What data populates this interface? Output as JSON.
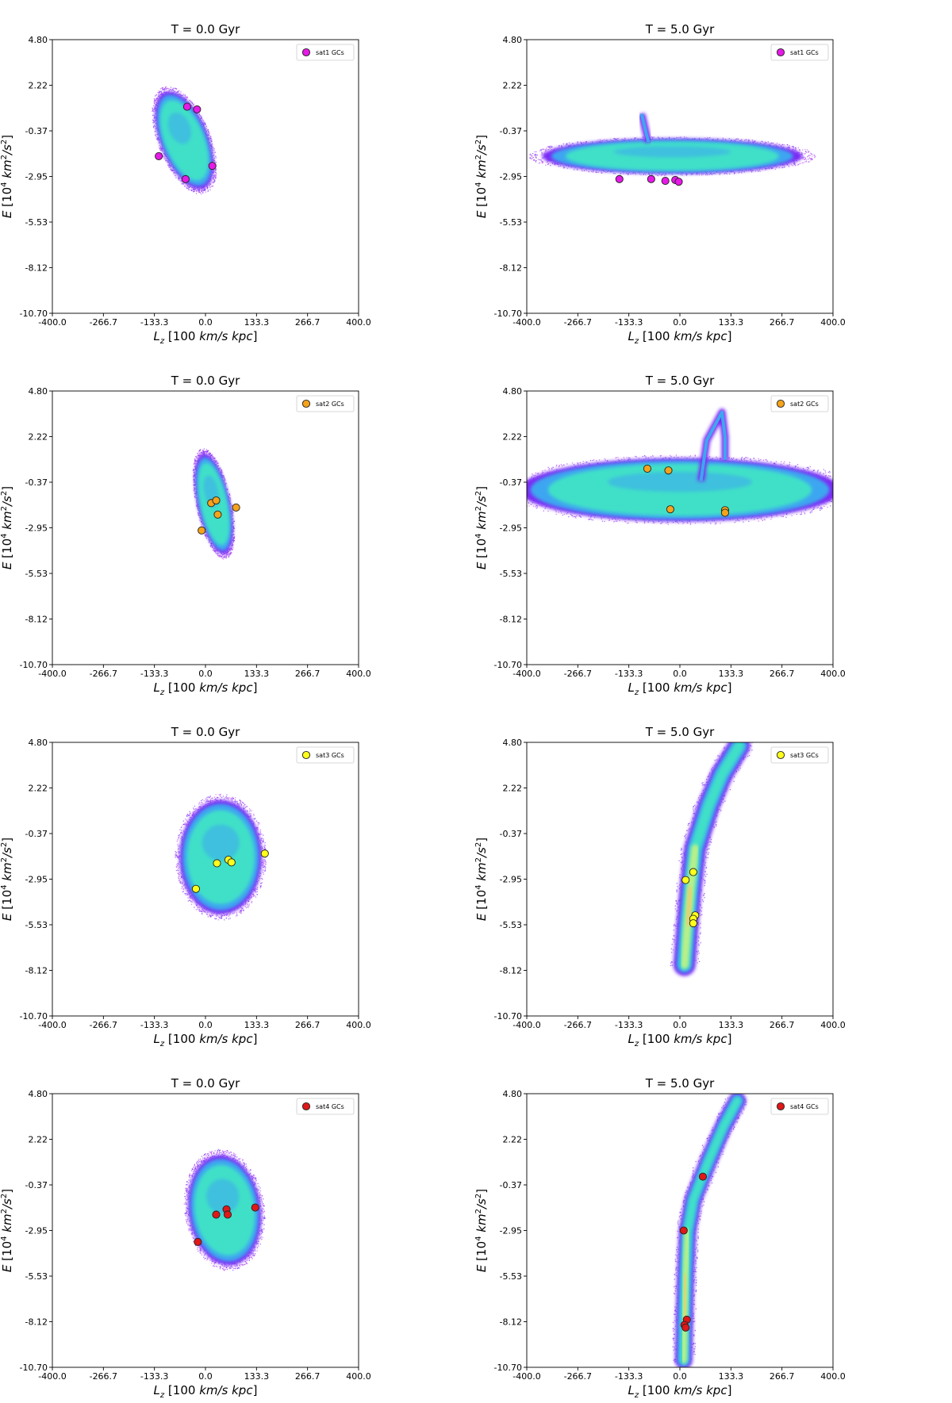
{
  "colors": {
    "sat1": "#e619e6",
    "sat2": "#f5a31a",
    "sat3": "#ffff1a",
    "sat4": "#e01818",
    "cloud_outer": "#7a2cf5",
    "cloud_mid": "#3ea6f0",
    "cloud_inner": "#3fe0c8",
    "cloud_core": "#b8f08a",
    "cloud_peak": "#f5c76b"
  },
  "chart_data": [
    {
      "type": "scatter",
      "panel": "sat1-t0",
      "title": "T = 0.0 Gyr",
      "xlabel": "L_z [100 km/s kpc]",
      "ylabel": "E [10^4 km^2/s^2]",
      "xlim": [
        -400,
        400
      ],
      "ylim": [
        -10.7,
        4.8
      ],
      "xticks": [
        "-400.0",
        "-266.7",
        "-133.3",
        "0.0",
        "133.3",
        "266.7",
        "400.0"
      ],
      "yticks": [
        "4.80",
        "2.22",
        "-0.37",
        "-2.95",
        "-5.53",
        "-8.12",
        "-10.70"
      ],
      "legend": "sat1 GCs",
      "legend_position": "top-right",
      "color_key": "sat1",
      "points": [
        [
          -48,
          1.0
        ],
        [
          -22,
          0.85
        ],
        [
          -122,
          -1.8
        ],
        [
          18,
          -2.35
        ],
        [
          -52,
          -3.1
        ]
      ],
      "density": [
        {
          "cx": -55,
          "cy": -0.9,
          "rx": 62,
          "ry": 2.95,
          "rot": 22
        }
      ]
    },
    {
      "type": "scatter",
      "panel": "sat1-t5",
      "title": "T = 5.0 Gyr",
      "xlabel": "L_z [100 km/s kpc]",
      "ylabel": "E [10^4 km^2/s^2]",
      "xlim": [
        -400,
        400
      ],
      "ylim": [
        -10.7,
        4.8
      ],
      "xticks": [
        "-400.0",
        "-266.7",
        "-133.3",
        "0.0",
        "133.3",
        "266.7",
        "400.0"
      ],
      "yticks": [
        "4.80",
        "2.22",
        "-0.37",
        "-2.95",
        "-5.53",
        "-8.12",
        "-10.70"
      ],
      "legend": "sat1 GCs",
      "legend_position": "top-right",
      "color_key": "sat1",
      "points": [
        [
          -158,
          -3.1
        ],
        [
          -75,
          -3.1
        ],
        [
          -38,
          -3.2
        ],
        [
          -12,
          -3.15
        ],
        [
          -3,
          -3.25
        ]
      ],
      "density": [
        {
          "cx": -20,
          "cy": -1.8,
          "rx": 340,
          "ry": 1.0,
          "rot": 0
        }
      ],
      "spur": [
        [
          -100,
          0.6
        ],
        [
          -88,
          -0.5
        ],
        [
          -82,
          -1.0
        ]
      ]
    },
    {
      "type": "scatter",
      "panel": "sat2-t0",
      "title": "T = 0.0 Gyr",
      "xlabel": "L_z [100 km/s kpc]",
      "ylabel": "E [10^4 km^2/s^2]",
      "xlim": [
        -400,
        400
      ],
      "ylim": [
        -10.7,
        4.8
      ],
      "xticks": [
        "-400.0",
        "-266.7",
        "-133.3",
        "0.0",
        "133.3",
        "266.7",
        "400.0"
      ],
      "yticks": [
        "4.80",
        "2.22",
        "-0.37",
        "-2.95",
        "-5.53",
        "-8.12",
        "-10.70"
      ],
      "legend": "sat2 GCs",
      "legend_position": "top-right",
      "color_key": "sat2",
      "points": [
        [
          15,
          -1.55
        ],
        [
          28,
          -1.4
        ],
        [
          80,
          -1.8
        ],
        [
          32,
          -2.2
        ],
        [
          -10,
          -3.1
        ]
      ],
      "density": [
        {
          "cx": 22,
          "cy": -1.6,
          "rx": 42,
          "ry": 2.9,
          "rot": 12
        }
      ]
    },
    {
      "type": "scatter",
      "panel": "sat2-t5",
      "title": "T = 5.0 Gyr",
      "xlabel": "L_z [100 km/s kpc]",
      "ylabel": "E [10^4 km^2/s^2]",
      "xlim": [
        -400,
        400
      ],
      "ylim": [
        -10.7,
        4.8
      ],
      "xticks": [
        "-400.0",
        "-266.7",
        "-133.3",
        "0.0",
        "133.3",
        "266.7",
        "400.0"
      ],
      "yticks": [
        "4.80",
        "2.22",
        "-0.37",
        "-2.95",
        "-5.53",
        "-8.12",
        "-10.70"
      ],
      "legend": "sat2 GCs",
      "legend_position": "top-right",
      "color_key": "sat2",
      "points": [
        [
          -85,
          0.4
        ],
        [
          -30,
          0.3
        ],
        [
          -25,
          -1.9
        ],
        [
          118,
          -1.95
        ],
        [
          118,
          -2.1
        ]
      ],
      "density": [
        {
          "cx": 0,
          "cy": -0.8,
          "rx": 420,
          "ry": 1.8,
          "rot": 0
        }
      ],
      "spur": [
        [
          55,
          -0.3
        ],
        [
          70,
          2.0
        ],
        [
          110,
          3.6
        ],
        [
          118,
          2.2
        ],
        [
          118,
          0.9
        ]
      ]
    },
    {
      "type": "scatter",
      "panel": "sat3-t0",
      "title": "T = 0.0 Gyr",
      "xlabel": "L_z [100 km/s kpc]",
      "ylabel": "E [10^4 km^2/s^2]",
      "xlim": [
        -400,
        400
      ],
      "ylim": [
        -10.7,
        4.8
      ],
      "xticks": [
        "-400.0",
        "-266.7",
        "-133.3",
        "0.0",
        "133.3",
        "266.7",
        "400.0"
      ],
      "yticks": [
        "4.80",
        "2.22",
        "-0.37",
        "-2.95",
        "-5.53",
        "-8.12",
        "-10.70"
      ],
      "legend": "sat3 GCs",
      "legend_position": "top-right",
      "color_key": "sat3",
      "points": [
        [
          155,
          -1.5
        ],
        [
          60,
          -1.85
        ],
        [
          68,
          -2.0
        ],
        [
          30,
          -2.05
        ],
        [
          -25,
          -3.5
        ]
      ],
      "density": [
        {
          "cx": 40,
          "cy": -1.7,
          "rx": 108,
          "ry": 3.25,
          "rot": 0
        }
      ]
    },
    {
      "type": "scatter",
      "panel": "sat3-t5",
      "title": "T = 5.0 Gyr",
      "xlabel": "L_z [100 km/s kpc]",
      "ylabel": "E [10^4 km^2/s^2]",
      "xlim": [
        -400,
        400
      ],
      "ylim": [
        -10.7,
        4.8
      ],
      "xticks": [
        "-400.0",
        "-266.7",
        "-133.3",
        "0.0",
        "133.3",
        "266.7",
        "400.0"
      ],
      "yticks": [
        "4.80",
        "2.22",
        "-0.37",
        "-2.95",
        "-5.53",
        "-8.12",
        "-10.70"
      ],
      "legend": "sat3 GCs",
      "legend_position": "top-right",
      "color_key": "sat3",
      "points": [
        [
          35,
          -2.55
        ],
        [
          15,
          -3.0
        ],
        [
          40,
          -5.0
        ],
        [
          35,
          -5.2
        ],
        [
          35,
          -5.45
        ]
      ],
      "density": [],
      "stream": [
        [
          12,
          -7.8
        ],
        [
          20,
          -5.5
        ],
        [
          28,
          -3.5
        ],
        [
          40,
          -1.2
        ],
        [
          75,
          1.2
        ],
        [
          110,
          3.0
        ],
        [
          155,
          4.6
        ]
      ],
      "stream_width": 28
    },
    {
      "type": "scatter",
      "panel": "sat4-t0",
      "title": "T = 0.0 Gyr",
      "xlabel": "L_z [100 km/s kpc]",
      "ylabel": "E [10^4 km^2/s^2]",
      "xlim": [
        -400,
        400
      ],
      "ylim": [
        -10.7,
        4.8
      ],
      "xticks": [
        "-400.0",
        "-266.7",
        "-133.3",
        "0.0",
        "133.3",
        "266.7",
        "400.0"
      ],
      "yticks": [
        "4.80",
        "2.22",
        "-0.37",
        "-2.95",
        "-5.53",
        "-8.12",
        "-10.70"
      ],
      "legend": "sat4 GCs",
      "legend_position": "top-right",
      "color_key": "sat4",
      "points": [
        [
          130,
          -1.65
        ],
        [
          55,
          -1.75
        ],
        [
          58,
          -2.05
        ],
        [
          28,
          -2.05
        ],
        [
          -20,
          -3.6
        ]
      ],
      "density": [
        {
          "cx": 50,
          "cy": -1.8,
          "rx": 95,
          "ry": 3.15,
          "rot": 8
        }
      ]
    },
    {
      "type": "scatter",
      "panel": "sat4-t5",
      "title": "T = 5.0 Gyr",
      "xlabel": "L_z [100 km/s kpc]",
      "ylabel": "E [10^4 km^2/s^2]",
      "xlim": [
        -400,
        400
      ],
      "ylim": [
        -10.7,
        4.8
      ],
      "xticks": [
        "-400.0",
        "-266.7",
        "-133.3",
        "0.0",
        "133.3",
        "266.7",
        "400.0"
      ],
      "yticks": [
        "4.80",
        "2.22",
        "-0.37",
        "-2.95",
        "-5.53",
        "-8.12",
        "-10.70"
      ],
      "legend": "sat4 GCs",
      "legend_position": "top-right",
      "color_key": "sat4",
      "points": [
        [
          60,
          0.1
        ],
        [
          10,
          -2.95
        ],
        [
          18,
          -8.0
        ],
        [
          12,
          -8.3
        ],
        [
          15,
          -8.45
        ]
      ],
      "density": [],
      "stream": [
        [
          10,
          -10.3
        ],
        [
          12,
          -8.0
        ],
        [
          15,
          -5.5
        ],
        [
          20,
          -3.0
        ],
        [
          35,
          -1.2
        ],
        [
          75,
          1.0
        ],
        [
          115,
          3.0
        ],
        [
          150,
          4.4
        ]
      ],
      "stream_width": 22
    }
  ]
}
